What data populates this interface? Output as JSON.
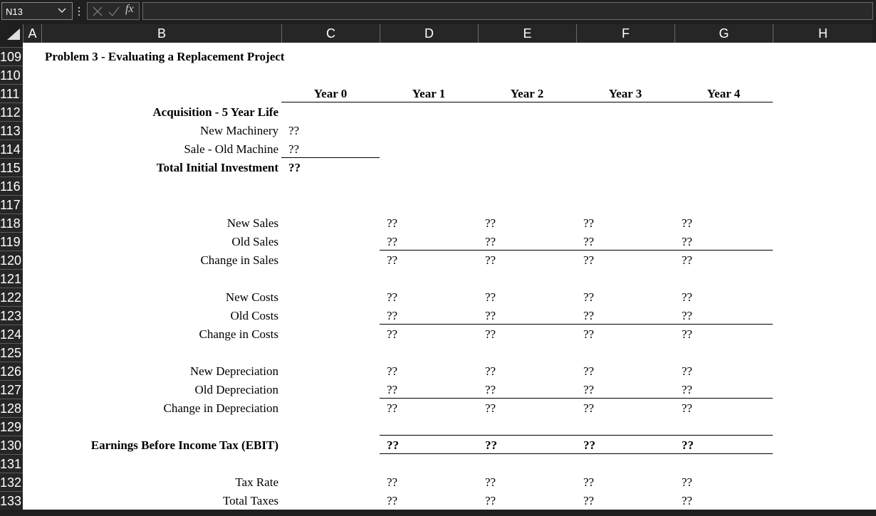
{
  "formula_bar": {
    "name_box": "N13",
    "function_label": "fx"
  },
  "columns": [
    "A",
    "B",
    "C",
    "D",
    "E",
    "F",
    "G",
    "H"
  ],
  "rows": [
    {
      "number": "109",
      "title": "Problem 3 - Evaluating a Replacement Project"
    },
    {
      "number": "110"
    },
    {
      "number": "111",
      "bold": true,
      "headers": {
        "C": "Year 0",
        "D": "Year 1",
        "E": "Year 2",
        "F": "Year 3",
        "G": "Year 4"
      },
      "bottom_border": [
        "C",
        "D",
        "E",
        "F",
        "G"
      ]
    },
    {
      "number": "112",
      "bold": true,
      "label": "Acquisition - 5 Year Life"
    },
    {
      "number": "113",
      "label": "New Machinery",
      "cells": {
        "C": "??"
      }
    },
    {
      "number": "114",
      "label": "Sale - Old Machine",
      "cells": {
        "C": "??"
      },
      "bottom_border": [
        "C"
      ]
    },
    {
      "number": "115",
      "bold": true,
      "label": "Total Initial Investment",
      "cells": {
        "C": "??"
      }
    },
    {
      "number": "116"
    },
    {
      "number": "117"
    },
    {
      "number": "118",
      "label": "New Sales",
      "cells": {
        "D": "??",
        "E": "??",
        "F": "??",
        "G": "??"
      }
    },
    {
      "number": "119",
      "label": "Old Sales",
      "cells": {
        "D": "??",
        "E": "??",
        "F": "??",
        "G": "??"
      },
      "bottom_border": [
        "D",
        "E",
        "F",
        "G"
      ]
    },
    {
      "number": "120",
      "label": "Change in Sales",
      "cells": {
        "D": "??",
        "E": "??",
        "F": "??",
        "G": "??"
      }
    },
    {
      "number": "121"
    },
    {
      "number": "122",
      "label": "New Costs",
      "cells": {
        "D": "??",
        "E": "??",
        "F": "??",
        "G": "??"
      }
    },
    {
      "number": "123",
      "label": "Old Costs",
      "cells": {
        "D": "??",
        "E": "??",
        "F": "??",
        "G": "??"
      },
      "bottom_border": [
        "D",
        "E",
        "F",
        "G"
      ]
    },
    {
      "number": "124",
      "label": "Change in Costs",
      "cells": {
        "D": "??",
        "E": "??",
        "F": "??",
        "G": "??"
      }
    },
    {
      "number": "125"
    },
    {
      "number": "126",
      "label": "New Depreciation",
      "cells": {
        "D": "??",
        "E": "??",
        "F": "??",
        "G": "??"
      }
    },
    {
      "number": "127",
      "label": "Old Depreciation",
      "cells": {
        "D": "??",
        "E": "??",
        "F": "??",
        "G": "??"
      },
      "bottom_border": [
        "D",
        "E",
        "F",
        "G"
      ]
    },
    {
      "number": "128",
      "label": "Change in Depreciation",
      "cells": {
        "D": "??",
        "E": "??",
        "F": "??",
        "G": "??"
      }
    },
    {
      "number": "129",
      "bottom_border": [
        "D",
        "E",
        "F",
        "G"
      ]
    },
    {
      "number": "130",
      "bold": true,
      "label": "Earnings Before Income Tax (EBIT)",
      "cells": {
        "D": "??",
        "E": "??",
        "F": "??",
        "G": "??"
      },
      "bottom_border": [
        "D",
        "E",
        "F",
        "G"
      ]
    },
    {
      "number": "131"
    },
    {
      "number": "132",
      "label": "Tax Rate",
      "cells": {
        "D": "??",
        "E": "??",
        "F": "??",
        "G": "??"
      }
    },
    {
      "number": "133",
      "label": "Total Taxes",
      "cells": {
        "D": "??",
        "E": "??",
        "F": "??",
        "G": "??"
      }
    }
  ]
}
